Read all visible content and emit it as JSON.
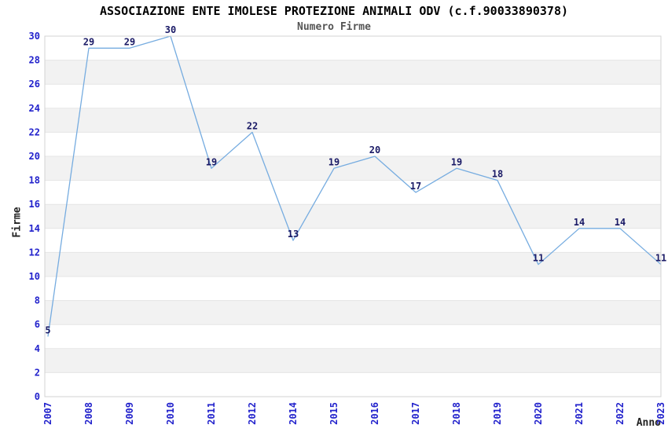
{
  "chart_data": {
    "type": "line",
    "title": "ASSOCIAZIONE ENTE IMOLESE PROTEZIONE ANIMALI ODV (c.f.90033890378)",
    "subtitle": "Numero Firme",
    "xlabel": "Anno",
    "ylabel": "Firme",
    "categories": [
      "2007",
      "2008",
      "2009",
      "2010",
      "2011",
      "2012",
      "2014",
      "2015",
      "2016",
      "2017",
      "2018",
      "2019",
      "2020",
      "2021",
      "2022",
      "2023"
    ],
    "values": [
      5,
      29,
      29,
      30,
      19,
      22,
      13,
      19,
      20,
      17,
      19,
      18,
      11,
      14,
      14,
      11
    ],
    "ylim": [
      0,
      30
    ],
    "ytick_step": 2,
    "grid": "alternating-horizontal-bands",
    "legend": "none",
    "markers": "none",
    "colors": {
      "line": "#76ace0",
      "tick_label": "#2222cc",
      "data_label": "#1a1a66",
      "band": "#f2f2f2",
      "gridline": "#e5e5e5",
      "plot_border": "#d3d3d3",
      "plot_background": "#ffffff",
      "title": "#000000",
      "subtitle": "#555555",
      "axis_label": "#222222",
      "page_background": "#ffffff"
    }
  }
}
